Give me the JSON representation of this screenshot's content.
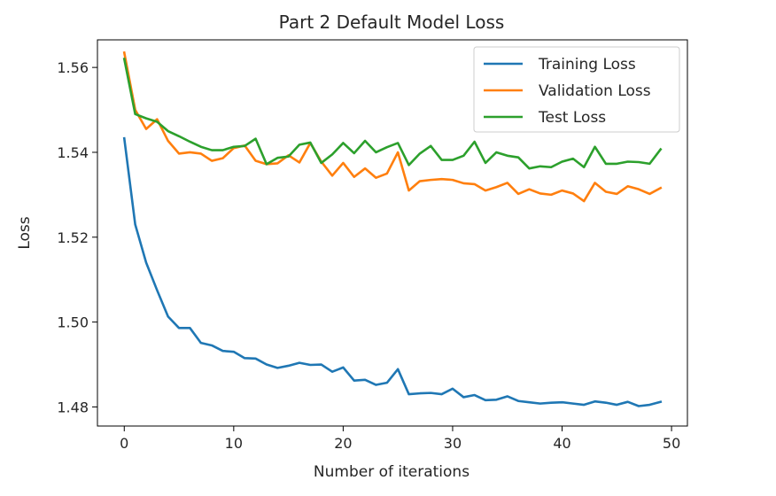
{
  "chart_data": {
    "type": "line",
    "title": "Part 2 Default Model Loss",
    "xlabel": "Number of iterations",
    "ylabel": "Loss",
    "xlim": [
      -2.45,
      51.45
    ],
    "ylim": [
      1.4755,
      1.5665
    ],
    "xticks": [
      "0",
      "10",
      "20",
      "30",
      "40",
      "50"
    ],
    "yticks": [
      "1.48",
      "1.50",
      "1.52",
      "1.54",
      "1.56"
    ],
    "grid": false,
    "legend_position": "top-right",
    "x": [
      0,
      1,
      2,
      3,
      4,
      5,
      6,
      7,
      8,
      9,
      10,
      11,
      12,
      13,
      14,
      15,
      16,
      17,
      18,
      19,
      20,
      21,
      22,
      23,
      24,
      25,
      26,
      27,
      28,
      29,
      30,
      31,
      32,
      33,
      34,
      35,
      36,
      37,
      38,
      39,
      40,
      41,
      42,
      43,
      44,
      45,
      46,
      47,
      48,
      49
    ],
    "series": [
      {
        "name": "Training Loss",
        "color": "#1f77b4",
        "values": [
          1.5433,
          1.523,
          1.514,
          1.5075,
          1.5013,
          1.4986,
          1.4986,
          1.4951,
          1.4945,
          1.4932,
          1.493,
          1.4915,
          1.4914,
          1.49,
          1.4892,
          1.4897,
          1.4904,
          1.4899,
          1.49,
          1.4883,
          1.4893,
          1.4862,
          1.4864,
          1.4852,
          1.4857,
          1.4889,
          1.483,
          1.4832,
          1.4833,
          1.483,
          1.4843,
          1.4823,
          1.4828,
          1.4816,
          1.4817,
          1.4825,
          1.4814,
          1.4811,
          1.4808,
          1.481,
          1.4811,
          1.4808,
          1.4805,
          1.4813,
          1.481,
          1.4805,
          1.4812,
          1.4802,
          1.4805,
          1.4812
        ]
      },
      {
        "name": "Validation Loss",
        "color": "#ff7f0e",
        "values": [
          1.5635,
          1.55,
          1.5455,
          1.5478,
          1.5427,
          1.5397,
          1.54,
          1.5397,
          1.538,
          1.5386,
          1.541,
          1.5416,
          1.538,
          1.5372,
          1.5374,
          1.5393,
          1.5376,
          1.5422,
          1.5378,
          1.5345,
          1.5375,
          1.5342,
          1.5362,
          1.534,
          1.535,
          1.54,
          1.531,
          1.5332,
          1.5335,
          1.5337,
          1.5335,
          1.5327,
          1.5325,
          1.531,
          1.5318,
          1.5328,
          1.5302,
          1.5313,
          1.5303,
          1.53,
          1.531,
          1.5303,
          1.5285,
          1.5328,
          1.5307,
          1.5302,
          1.532,
          1.5313,
          1.5302,
          1.5316
        ]
      },
      {
        "name": "Test Loss",
        "color": "#2ca02c",
        "values": [
          1.562,
          1.549,
          1.548,
          1.5472,
          1.545,
          1.5438,
          1.5425,
          1.5413,
          1.5405,
          1.5405,
          1.5413,
          1.5415,
          1.5432,
          1.5372,
          1.5387,
          1.539,
          1.5418,
          1.5423,
          1.5375,
          1.5395,
          1.5422,
          1.5398,
          1.5427,
          1.54,
          1.5412,
          1.5422,
          1.537,
          1.5397,
          1.5415,
          1.5382,
          1.5382,
          1.5392,
          1.5425,
          1.5375,
          1.54,
          1.5392,
          1.5388,
          1.5362,
          1.5367,
          1.5365,
          1.5378,
          1.5385,
          1.5365,
          1.5413,
          1.5373,
          1.5373,
          1.5378,
          1.5377,
          1.5373,
          1.5407
        ]
      }
    ]
  }
}
